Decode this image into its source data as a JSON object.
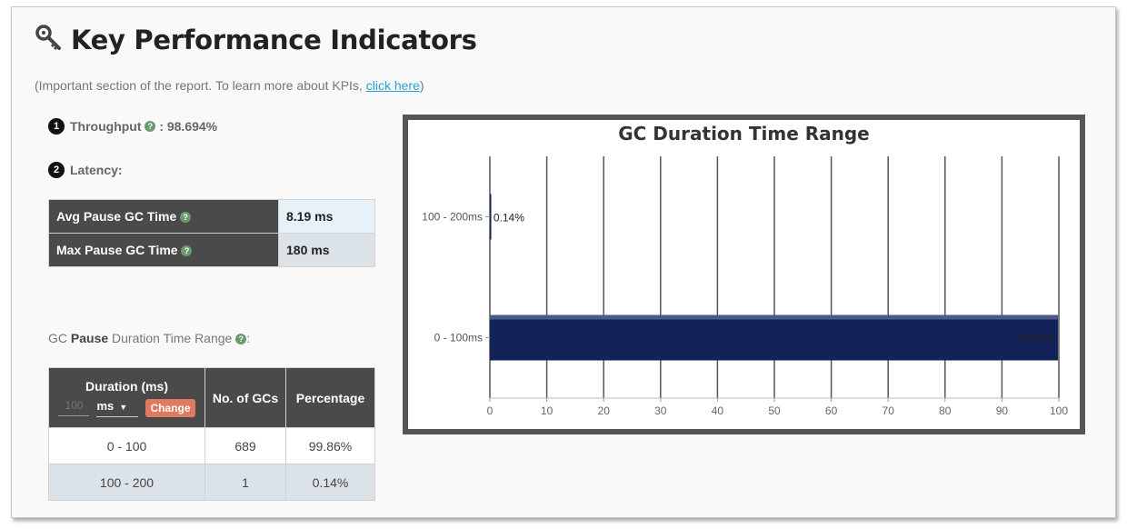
{
  "header": {
    "title": "Key Performance Indicators",
    "subtitle_prefix": "(Important section of the report. To learn more about KPIs, ",
    "subtitle_link": "click here",
    "subtitle_suffix": ")"
  },
  "kpi": {
    "throughput_number": "1",
    "throughput_label": "Throughput",
    "throughput_value": ": 98.694%",
    "latency_number": "2",
    "latency_label": "Latency:",
    "help_glyph": "?"
  },
  "latency_table": {
    "rows": [
      {
        "label": "Avg Pause GC Time",
        "value": "8.19 ms"
      },
      {
        "label": "Max Pause GC Time",
        "value": "180 ms"
      }
    ]
  },
  "pause_range": {
    "label_prefix": "GC ",
    "label_bold": "Pause",
    "label_suffix": " Duration Time Range",
    "label_colon": ":"
  },
  "range_table": {
    "headers": {
      "duration": "Duration (ms)",
      "count": "No. of GCs",
      "percentage": "Percentage"
    },
    "duration_input_placeholder": "100",
    "duration_unit": "ms",
    "unit_caret": "▼",
    "change_label": "Change",
    "rows": [
      {
        "range": "0 - 100",
        "count": "689",
        "percentage": "99.86%"
      },
      {
        "range": "100 - 200",
        "count": "1",
        "percentage": "0.14%"
      }
    ]
  },
  "colors": {
    "bar": "#13235a",
    "header_dark": "#4a4a4a",
    "change_button": "#e07a5f",
    "link": "#29a0d6"
  },
  "chart_data": {
    "type": "bar",
    "orientation": "horizontal",
    "title": "GC Duration Time Range",
    "categories": [
      "100 - 200ms",
      "0 - 100ms"
    ],
    "values": [
      0.14,
      99.86
    ],
    "data_labels": [
      "0.14%",
      "99.86%"
    ],
    "xlim": [
      0,
      100
    ],
    "xticks": [
      "0",
      "10",
      "20",
      "30",
      "40",
      "50",
      "60",
      "70",
      "80",
      "90",
      "100"
    ],
    "grid": true,
    "xlabel": "",
    "ylabel": ""
  }
}
